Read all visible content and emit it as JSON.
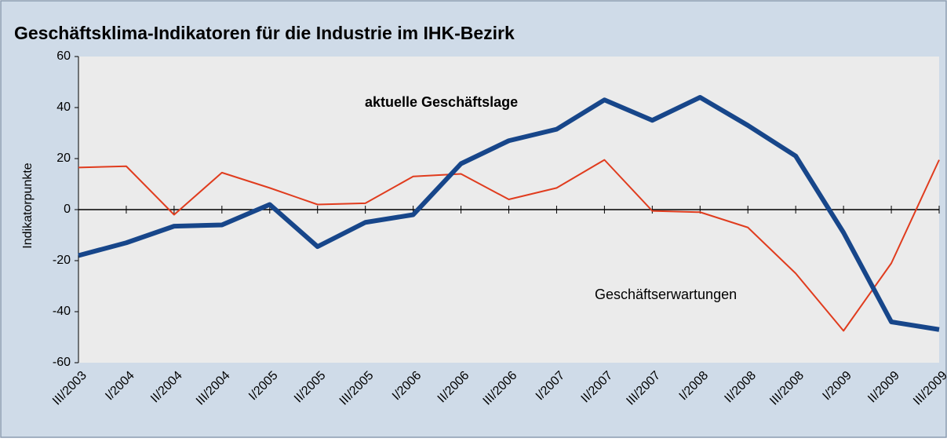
{
  "chart_data": {
    "type": "line",
    "title": "Geschäftsklima-Indikatoren für die Industrie im IHK-Bezirk",
    "y_label": "Indikatorpunkte",
    "categories": [
      "III/2003",
      "I/2004",
      "II/2004",
      "III/2004",
      "I/2005",
      "II/2005",
      "III/2005",
      "I/2006",
      "II/2006",
      "III/2006",
      "I/2007",
      "II/2007",
      "III/2007",
      "I/2008",
      "II/2008",
      "III/2008",
      "I/2009",
      "II/2009",
      "III/2009"
    ],
    "series": [
      {
        "name": "aktuelle Geschäftslage",
        "color": "#17468a",
        "width": 6,
        "values": [
          -18,
          -13,
          -6.5,
          -6,
          2,
          -14.5,
          -5,
          -2,
          18,
          27,
          31.5,
          43,
          35,
          44,
          33,
          21,
          -9,
          -44,
          -47
        ]
      },
      {
        "name": "Geschäftserwartungen",
        "color": "#e03c1e",
        "width": 2,
        "values": [
          16.5,
          17,
          -2,
          14.5,
          8.5,
          2,
          2.5,
          13,
          14,
          4,
          8.5,
          19.5,
          -0.5,
          -1,
          -7,
          -25,
          -47.5,
          -21,
          19.5
        ]
      }
    ],
    "ylim": [
      -60,
      60
    ],
    "yticks": [
      -60,
      -40,
      -20,
      0,
      20,
      40,
      60
    ],
    "grid": false
  }
}
